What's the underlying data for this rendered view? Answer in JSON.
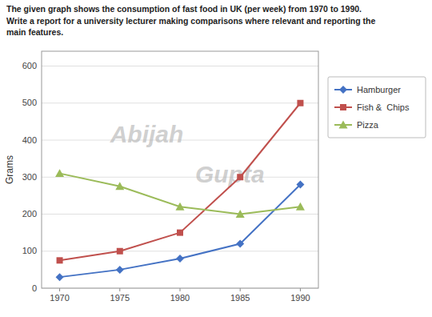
{
  "chart_data": {
    "type": "line",
    "title": "The given graph shows the consumption of fast food in UK (per week) from 1970 to 1990.",
    "subtitle": "Write a report for a university lecturer making comparisons where relevant and reporting the\nmain features.",
    "x": [
      1970,
      1975,
      1980,
      1985,
      1990
    ],
    "xlim": [
      1968.5,
      1991.5
    ],
    "xticks": [
      1970,
      1975,
      1980,
      1985,
      1990
    ],
    "ylabel": "Grams",
    "ylim": [
      0,
      640
    ],
    "yticks": [
      0,
      100,
      200,
      300,
      400,
      500,
      600
    ],
    "grid": true,
    "legend": "right",
    "annotations": [
      {
        "text": "Abijah"
      },
      {
        "text": "Gupta"
      }
    ],
    "series": [
      {
        "name": "Hamburger",
        "color": "#4472C4",
        "marker": "diamond",
        "values": [
          30,
          50,
          80,
          120,
          280
        ]
      },
      {
        "name": "Fish &  Chips",
        "color": "#C0504D",
        "marker": "square",
        "values": [
          75,
          100,
          150,
          300,
          500
        ]
      },
      {
        "name": "Pizza",
        "color": "#9BBB59",
        "marker": "triangle",
        "values": [
          310,
          275,
          220,
          200,
          220
        ]
      }
    ]
  }
}
